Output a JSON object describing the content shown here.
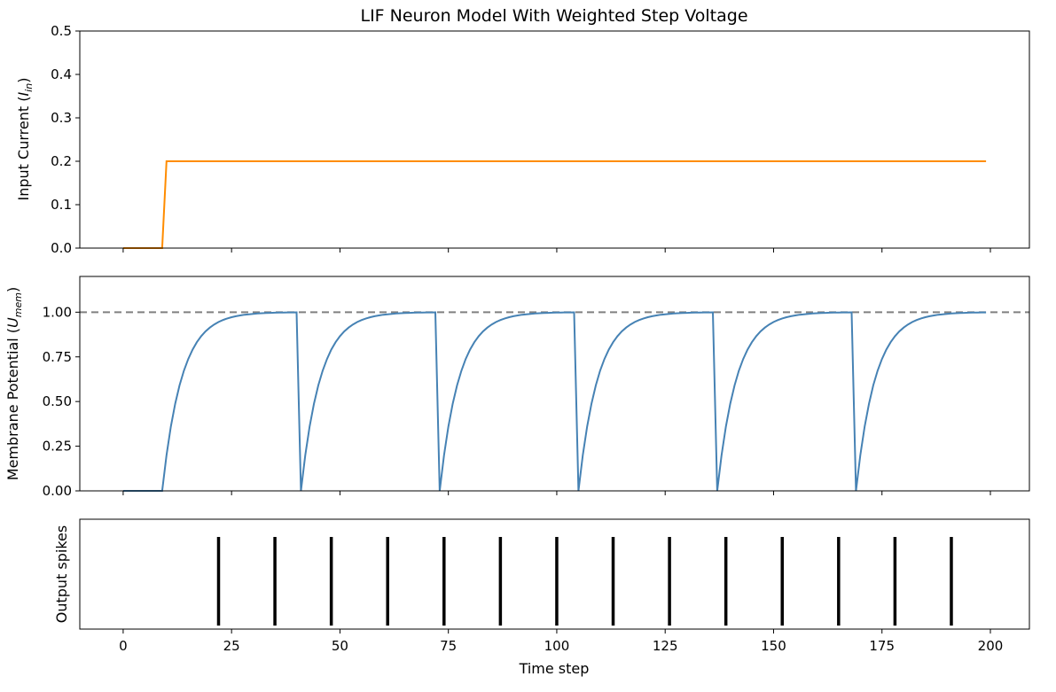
{
  "figure_title": "LIF Neuron Model With Weighted Step Voltage",
  "colors": {
    "input_line": "#ff8c00",
    "membrane_line": "#4682b4",
    "threshold_line": "#808080",
    "spike": "#000000",
    "axes": "#000000"
  },
  "chart_data": [
    {
      "type": "line",
      "panel": "input-current",
      "ylabel": "Input Current (I_in)",
      "ylabel_main": "Input Current (",
      "ylabel_var": "I",
      "ylabel_sub": "in",
      "ylabel_close": ")",
      "xlim": [
        -10,
        209
      ],
      "ylim": [
        0,
        0.5
      ],
      "yticks": [
        0.0,
        0.1,
        0.2,
        0.3,
        0.4,
        0.5
      ],
      "ytick_labels": [
        "0.0",
        "0.1",
        "0.2",
        "0.3",
        "0.4",
        "0.5"
      ],
      "grid": false,
      "series": [
        {
          "color": "#ff8c00",
          "x": [
            0,
            9,
            10,
            199
          ],
          "y": [
            0,
            0,
            0.2,
            0.2
          ]
        }
      ]
    },
    {
      "type": "line",
      "panel": "membrane-potential",
      "ylabel": "Membrane Potential (U_mem)",
      "ylabel_main": "Membrane Potential (",
      "ylabel_var": "U",
      "ylabel_sub": "mem",
      "ylabel_close": ")",
      "xlim": [
        -10,
        209
      ],
      "ylim": [
        0,
        1.2
      ],
      "yticks": [
        0.0,
        0.25,
        0.5,
        0.75,
        1.0
      ],
      "ytick_labels": [
        "0.00",
        "0.25",
        "0.50",
        "0.75",
        "1.00"
      ],
      "threshold": 1.0,
      "grid": false,
      "simulation": {
        "beta": 0.8,
        "input": 0.2,
        "threshold": 1.0,
        "step_onset": 10,
        "t_end": 199
      },
      "series": [
        {
          "color": "#4682b4",
          "note": "membrane trace from simulation parameters"
        }
      ]
    },
    {
      "type": "scatter",
      "panel": "output-spikes",
      "ylabel": "Output spikes",
      "xlabel": "Time step",
      "xlim": [
        -10,
        209
      ],
      "xticks": [
        0,
        25,
        50,
        75,
        100,
        125,
        150,
        175,
        200
      ],
      "xtick_labels": [
        "0",
        "25",
        "50",
        "75",
        "100",
        "125",
        "150",
        "175",
        "200"
      ],
      "grid": false,
      "spike_times": [
        22,
        35,
        48,
        61,
        74,
        87,
        100,
        113,
        126,
        139,
        152,
        165,
        178,
        191
      ]
    }
  ]
}
